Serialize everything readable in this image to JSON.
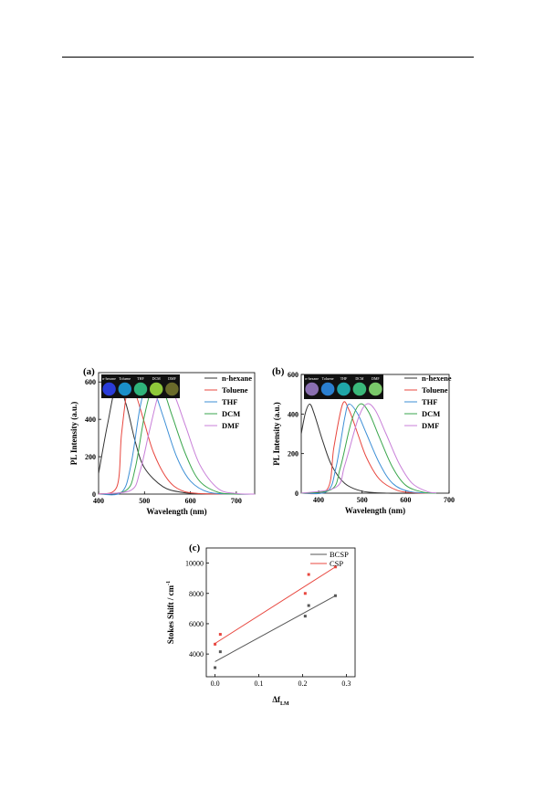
{
  "chart_data": [
    {
      "panel": "(a)",
      "type": "line",
      "xlabel": "Wavelength (nm)",
      "ylabel": "PL Intensity (a.u.)",
      "xlim": [
        400,
        740
      ],
      "ylim": [
        0,
        650
      ],
      "xticks": [
        400,
        500,
        600,
        700
      ],
      "yticks": [
        0,
        200,
        400,
        600
      ],
      "legend_position": "top-right",
      "inset_labels": [
        "n-hexane",
        "Toluene",
        "THF",
        "DCM",
        "DMF"
      ],
      "inset_colors": [
        "#2a3cd8",
        "#1a8fc8",
        "#2fb37a",
        "#8fc83a",
        "#6a6a2a"
      ],
      "series": [
        {
          "name": "n-hexane",
          "color": "#333333",
          "peak_x": 440,
          "peak_y": 590,
          "x": [
            400,
            420,
            440,
            460,
            480,
            500,
            540,
            580,
            620,
            700,
            740
          ],
          "values": [
            110,
            380,
            590,
            480,
            280,
            140,
            40,
            10,
            2,
            0,
            0
          ]
        },
        {
          "name": "Toluene",
          "color": "#e8473f",
          "peak_x": 465,
          "peak_y": 590,
          "x": [
            400,
            440,
            450,
            465,
            480,
            500,
            520,
            550,
            580,
            620,
            700,
            740
          ],
          "values": [
            0,
            40,
            320,
            590,
            540,
            380,
            220,
            80,
            20,
            3,
            0,
            0
          ]
        },
        {
          "name": "THF",
          "color": "#3d8fd6",
          "peak_x": 505,
          "peak_y": 590,
          "x": [
            400,
            450,
            470,
            490,
            505,
            520,
            540,
            570,
            600,
            640,
            700,
            740
          ],
          "values": [
            0,
            10,
            150,
            460,
            590,
            560,
            420,
            200,
            70,
            10,
            0,
            0
          ]
        },
        {
          "name": "DCM",
          "color": "#3aa64c",
          "peak_x": 520,
          "peak_y": 590,
          "x": [
            400,
            460,
            480,
            500,
            520,
            540,
            560,
            590,
            620,
            660,
            700,
            740
          ],
          "values": [
            0,
            20,
            140,
            420,
            590,
            560,
            420,
            210,
            70,
            10,
            0,
            0
          ]
        },
        {
          "name": "DMF",
          "color": "#c87fd8",
          "peak_x": 545,
          "peak_y": 590,
          "x": [
            400,
            470,
            490,
            510,
            530,
            545,
            565,
            590,
            620,
            660,
            700,
            740
          ],
          "values": [
            0,
            20,
            120,
            330,
            530,
            590,
            530,
            360,
            160,
            30,
            3,
            0
          ]
        }
      ]
    },
    {
      "panel": "(b)",
      "type": "line",
      "xlabel": "Wavelength (nm)",
      "ylabel": "PL Intensity (a.u.)",
      "xlim": [
        360,
        700
      ],
      "ylim": [
        0,
        600
      ],
      "xticks": [
        400,
        500,
        600,
        700
      ],
      "yticks": [
        0,
        200,
        400,
        600
      ],
      "legend_position": "top-right",
      "legend": [
        "n-hexene",
        "Toluene",
        "THF",
        "DCM",
        "DMF"
      ],
      "inset_labels": [
        "n-hexane",
        "Toluene",
        "THF",
        "DCM",
        "DMF"
      ],
      "inset_colors": [
        "#8a6fb0",
        "#2a7fd0",
        "#1fa6a8",
        "#3ab87a",
        "#7ac86a"
      ],
      "series": [
        {
          "name": "n-hexene",
          "color": "#333333",
          "peak_x": 380,
          "peak_y": 450,
          "x": [
            360,
            370,
            380,
            390,
            410,
            430,
            460,
            500,
            560,
            670
          ],
          "values": [
            300,
            410,
            450,
            400,
            260,
            140,
            50,
            10,
            0,
            0
          ]
        },
        {
          "name": "Toluene",
          "color": "#e8473f",
          "peak_x": 455,
          "peak_y": 450,
          "x": [
            360,
            420,
            435,
            455,
            470,
            490,
            510,
            540,
            580,
            620,
            670
          ],
          "values": [
            0,
            20,
            230,
            450,
            420,
            300,
            180,
            70,
            15,
            2,
            0
          ]
        },
        {
          "name": "THF",
          "color": "#3d8fd6",
          "peak_x": 470,
          "peak_y": 450,
          "x": [
            360,
            420,
            440,
            460,
            470,
            490,
            510,
            540,
            570,
            610,
            670
          ],
          "values": [
            0,
            10,
            130,
            380,
            450,
            400,
            300,
            150,
            50,
            8,
            0
          ]
        },
        {
          "name": "DCM",
          "color": "#3aa64c",
          "peak_x": 495,
          "peak_y": 450,
          "x": [
            360,
            430,
            450,
            475,
            495,
            515,
            540,
            570,
            600,
            640,
            670
          ],
          "values": [
            0,
            20,
            130,
            360,
            450,
            410,
            280,
            130,
            40,
            5,
            0
          ]
        },
        {
          "name": "DMF",
          "color": "#c87fd8",
          "peak_x": 510,
          "peak_y": 450,
          "x": [
            360,
            440,
            460,
            490,
            510,
            530,
            555,
            585,
            615,
            650,
            670
          ],
          "values": [
            0,
            30,
            140,
            370,
            450,
            420,
            300,
            150,
            50,
            8,
            2
          ]
        }
      ]
    },
    {
      "panel": "(c)",
      "type": "scatter",
      "xlabel": "Δf",
      "xlabel_sub": "LM",
      "ylabel": "Stokes Shift / cm",
      "ylabel_sup": "-1",
      "xlim": [
        -0.02,
        0.32
      ],
      "ylim": [
        2500,
        11000
      ],
      "xticks": [
        "0.0",
        "0.1",
        "0.2",
        "0.3"
      ],
      "yticks": [
        4000,
        6000,
        8000,
        10000
      ],
      "legend_position": "top-right",
      "series": [
        {
          "name": "BCSP",
          "color": "#555555",
          "x": [
            0.0,
            0.012,
            0.206,
            0.214,
            0.275
          ],
          "values": [
            3100,
            4150,
            6500,
            7200,
            7850
          ],
          "fit": [
            [
              0.0,
              3500
            ],
            [
              0.275,
              7850
            ]
          ]
        },
        {
          "name": "CSP",
          "color": "#e8473f",
          "x": [
            0.0,
            0.012,
            0.206,
            0.214,
            0.275
          ],
          "values": [
            4650,
            5300,
            8000,
            9250,
            9750
          ],
          "fit": [
            [
              0.0,
              4700
            ],
            [
              0.275,
              9750
            ]
          ]
        }
      ]
    }
  ]
}
